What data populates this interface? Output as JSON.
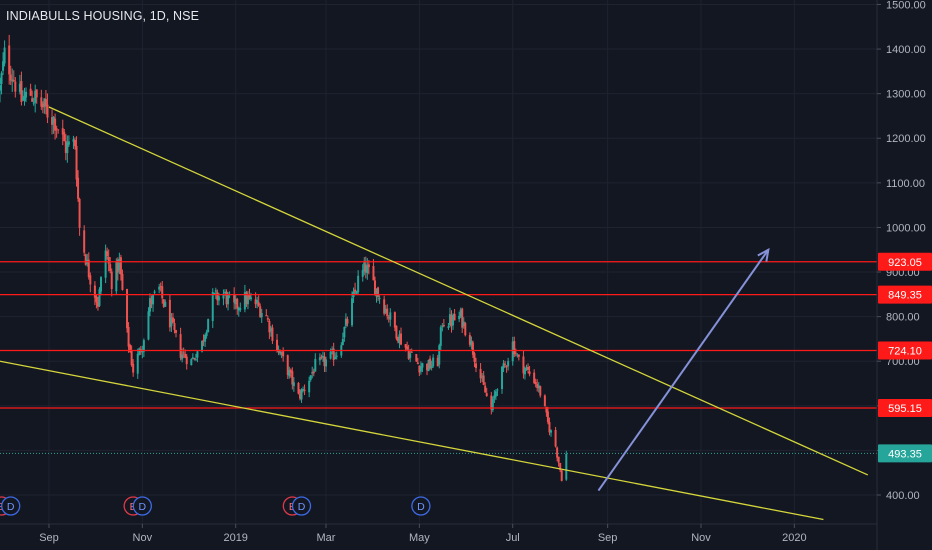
{
  "header": {
    "title": "INDIABULLS HOUSING, 1D, NSE"
  },
  "colors": {
    "background": "#131722",
    "grid": "#1f2330",
    "axis_text": "#b2b5be",
    "candle_up": "#26a69a",
    "candle_down": "#ef5350",
    "support_resistance": "#ff1a1a",
    "trendline": "#d4d63a",
    "arrow": "#8591d8",
    "last_price": "#26a69a"
  },
  "chart_data": {
    "type": "candlestick",
    "title": "INDIABULLS HOUSING, 1D, NSE",
    "ylim": [
      335,
      1510
    ],
    "xlim": [
      "2018-07-31",
      "2020-02-24"
    ],
    "y_ticks": [
      "400.00",
      "500.00",
      "600.00",
      "700.00",
      "800.00",
      "900.00",
      "1000.00",
      "1100.00",
      "1200.00",
      "1300.00",
      "1400.00",
      "1500.00"
    ],
    "x_ticks": [
      {
        "label": "Sep",
        "date": "2018-09-01"
      },
      {
        "label": "Nov",
        "date": "2018-11-01"
      },
      {
        "label": "2019",
        "date": "2019-01-01"
      },
      {
        "label": "Mar",
        "date": "2019-03-01"
      },
      {
        "label": "May",
        "date": "2019-05-01"
      },
      {
        "label": "Jul",
        "date": "2019-07-01"
      },
      {
        "label": "Sep",
        "date": "2019-09-01"
      },
      {
        "label": "Nov",
        "date": "2019-11-01"
      },
      {
        "label": "2020",
        "date": "2020-01-01"
      }
    ],
    "price_path": [
      [
        "2018-07-31",
        1310
      ],
      [
        "2018-08-03",
        1385
      ],
      [
        "2018-08-08",
        1345
      ],
      [
        "2018-08-14",
        1285
      ],
      [
        "2018-08-20",
        1300
      ],
      [
        "2018-08-28",
        1270
      ],
      [
        "2018-09-05",
        1240
      ],
      [
        "2018-09-12",
        1180
      ],
      [
        "2018-09-18",
        1190
      ],
      [
        "2018-09-21",
        1000
      ],
      [
        "2018-09-27",
        900
      ],
      [
        "2018-10-03",
        830
      ],
      [
        "2018-10-08",
        950
      ],
      [
        "2018-10-12",
        880
      ],
      [
        "2018-10-17",
        920
      ],
      [
        "2018-10-22",
        760
      ],
      [
        "2018-10-26",
        680
      ],
      [
        "2018-11-01",
        740
      ],
      [
        "2018-11-06",
        830
      ],
      [
        "2018-11-12",
        860
      ],
      [
        "2018-11-19",
        790
      ],
      [
        "2018-11-26",
        720
      ],
      [
        "2018-12-03",
        700
      ],
      [
        "2018-12-10",
        740
      ],
      [
        "2018-12-17",
        840
      ],
      [
        "2018-12-24",
        850
      ],
      [
        "2018-12-31",
        820
      ],
      [
        "2019-01-07",
        840
      ],
      [
        "2019-01-14",
        830
      ],
      [
        "2019-01-21",
        800
      ],
      [
        "2019-01-28",
        730
      ],
      [
        "2019-02-04",
        680
      ],
      [
        "2019-02-11",
        620
      ],
      [
        "2019-02-15",
        640
      ],
      [
        "2019-02-22",
        690
      ],
      [
        "2019-03-01",
        700
      ],
      [
        "2019-03-08",
        720
      ],
      [
        "2019-03-15",
        790
      ],
      [
        "2019-03-22",
        880
      ],
      [
        "2019-03-27",
        910
      ],
      [
        "2019-04-03",
        860
      ],
      [
        "2019-04-10",
        810
      ],
      [
        "2019-04-17",
        760
      ],
      [
        "2019-04-24",
        720
      ],
      [
        "2019-05-01",
        690
      ],
      [
        "2019-05-08",
        690
      ],
      [
        "2019-05-13",
        700
      ],
      [
        "2019-05-16",
        790
      ],
      [
        "2019-05-22",
        790
      ],
      [
        "2019-05-28",
        800
      ],
      [
        "2019-06-03",
        750
      ],
      [
        "2019-06-07",
        700
      ],
      [
        "2019-06-12",
        640
      ],
      [
        "2019-06-17",
        590
      ],
      [
        "2019-06-21",
        650
      ],
      [
        "2019-06-26",
        690
      ],
      [
        "2019-07-01",
        740
      ],
      [
        "2019-07-05",
        700
      ],
      [
        "2019-07-10",
        680
      ],
      [
        "2019-07-15",
        660
      ],
      [
        "2019-07-19",
        630
      ],
      [
        "2019-07-24",
        560
      ],
      [
        "2019-07-29",
        510
      ],
      [
        "2019-08-02",
        440
      ],
      [
        "2019-08-05",
        490
      ]
    ],
    "drawings": {
      "horizontal_levels": [
        {
          "value": 923.05,
          "label": "923.05"
        },
        {
          "value": 849.35,
          "label": "849.35"
        },
        {
          "value": 724.1,
          "label": "724.10"
        },
        {
          "value": 595.15,
          "label": "595.15"
        }
      ],
      "last_price": {
        "value": 493.35,
        "label": "493.35"
      },
      "trendlines": [
        {
          "from": [
            "2018-09-01",
            1270
          ],
          "to": [
            "2020-02-18",
            445
          ]
        },
        {
          "from": [
            "2018-07-31",
            700
          ],
          "to": [
            "2020-01-20",
            345
          ]
        }
      ],
      "arrow": {
        "from": [
          "2019-08-26",
          410
        ],
        "to": [
          "2019-12-15",
          950
        ]
      }
    },
    "events": [
      {
        "date": "2018-08-01",
        "type": "E"
      },
      {
        "date": "2018-08-07",
        "type": "D"
      },
      {
        "date": "2018-10-26",
        "type": "E"
      },
      {
        "date": "2018-11-01",
        "type": "D"
      },
      {
        "date": "2019-02-07",
        "type": "E"
      },
      {
        "date": "2019-02-13",
        "type": "D"
      },
      {
        "date": "2019-05-02",
        "type": "D"
      }
    ],
    "grid": true
  }
}
